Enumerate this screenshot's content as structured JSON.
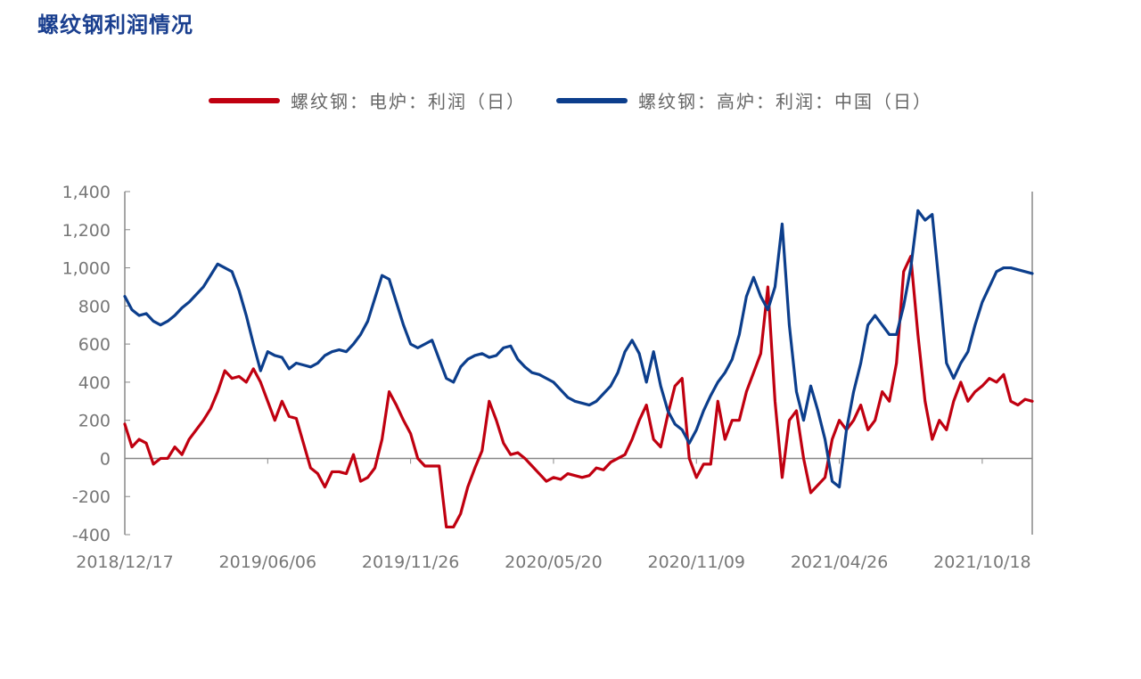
{
  "title": "螺纹钢利润情况",
  "colors": {
    "series1": "#c00010",
    "series2": "#0c3e8c",
    "axis": "#888888"
  },
  "chart_data": {
    "type": "line",
    "title": "螺纹钢利润情况",
    "xlabel": "",
    "ylabel": "",
    "ylim": [
      -400,
      1400
    ],
    "yticks": [
      -400,
      -200,
      0,
      200,
      400,
      600,
      800,
      1000,
      1200,
      1400
    ],
    "ytick_labels": [
      "-400",
      "-200",
      "0",
      "200",
      "400",
      "600",
      "800",
      "1,000",
      "1,200",
      "1,400"
    ],
    "x_tick_labels": [
      "2018/12/17",
      "2019/06/06",
      "2019/11/26",
      "2020/05/20",
      "2020/11/09",
      "2021/04/26",
      "2021/10/18"
    ],
    "x_tick_index": [
      0,
      20,
      40,
      60,
      80,
      100,
      120
    ],
    "x_count": 128,
    "grid": false,
    "legend_position": "top-center",
    "series": [
      {
        "name": "螺纹钢：电炉：利润（日）",
        "values": [
          180,
          60,
          100,
          80,
          -30,
          0,
          0,
          60,
          20,
          100,
          150,
          200,
          260,
          350,
          460,
          420,
          430,
          400,
          470,
          400,
          300,
          200,
          300,
          220,
          210,
          80,
          -50,
          -80,
          -150,
          -70,
          -70,
          -80,
          20,
          -120,
          -100,
          -50,
          100,
          350,
          280,
          200,
          130,
          0,
          -40,
          -40,
          -40,
          -360,
          -360,
          -290,
          -150,
          -50,
          40,
          300,
          200,
          80,
          20,
          30,
          0,
          -40,
          -80,
          -120,
          -100,
          -110,
          -80,
          -90,
          -100,
          -90,
          -50,
          -60,
          -20,
          0,
          20,
          100,
          200,
          280,
          100,
          60,
          230,
          380,
          420,
          0,
          -100,
          -30,
          -30,
          300,
          100,
          200,
          200,
          350,
          450,
          550,
          900,
          300,
          -100,
          200,
          250,
          0,
          -180,
          -140,
          -100,
          100,
          200,
          150,
          200,
          280,
          150,
          200,
          350,
          300,
          500,
          980,
          1060,
          650,
          300,
          100,
          200,
          150,
          300,
          400,
          300,
          350,
          380,
          420,
          400,
          440,
          300,
          280,
          310,
          300
        ]
      },
      {
        "name": "螺纹钢：高炉：利润：中国（日）",
        "values": [
          850,
          780,
          750,
          760,
          720,
          700,
          720,
          750,
          790,
          820,
          860,
          900,
          960,
          1020,
          1000,
          980,
          880,
          750,
          600,
          460,
          560,
          540,
          530,
          470,
          500,
          490,
          480,
          500,
          540,
          560,
          570,
          560,
          600,
          650,
          720,
          840,
          960,
          940,
          820,
          700,
          600,
          580,
          600,
          620,
          520,
          420,
          400,
          480,
          520,
          540,
          550,
          530,
          540,
          580,
          590,
          520,
          480,
          450,
          440,
          420,
          400,
          360,
          320,
          300,
          290,
          280,
          300,
          340,
          380,
          450,
          560,
          620,
          550,
          400,
          560,
          380,
          250,
          180,
          150,
          80,
          150,
          250,
          330,
          400,
          450,
          520,
          650,
          850,
          950,
          850,
          780,
          900,
          1230,
          700,
          350,
          200,
          380,
          250,
          100,
          -120,
          -150,
          150,
          350,
          500,
          700,
          750,
          700,
          650,
          650,
          800,
          1000,
          1300,
          1250,
          1280,
          900,
          500,
          420,
          500,
          560,
          700,
          820,
          900,
          980,
          1000,
          1000,
          990,
          980,
          970
        ]
      }
    ]
  }
}
